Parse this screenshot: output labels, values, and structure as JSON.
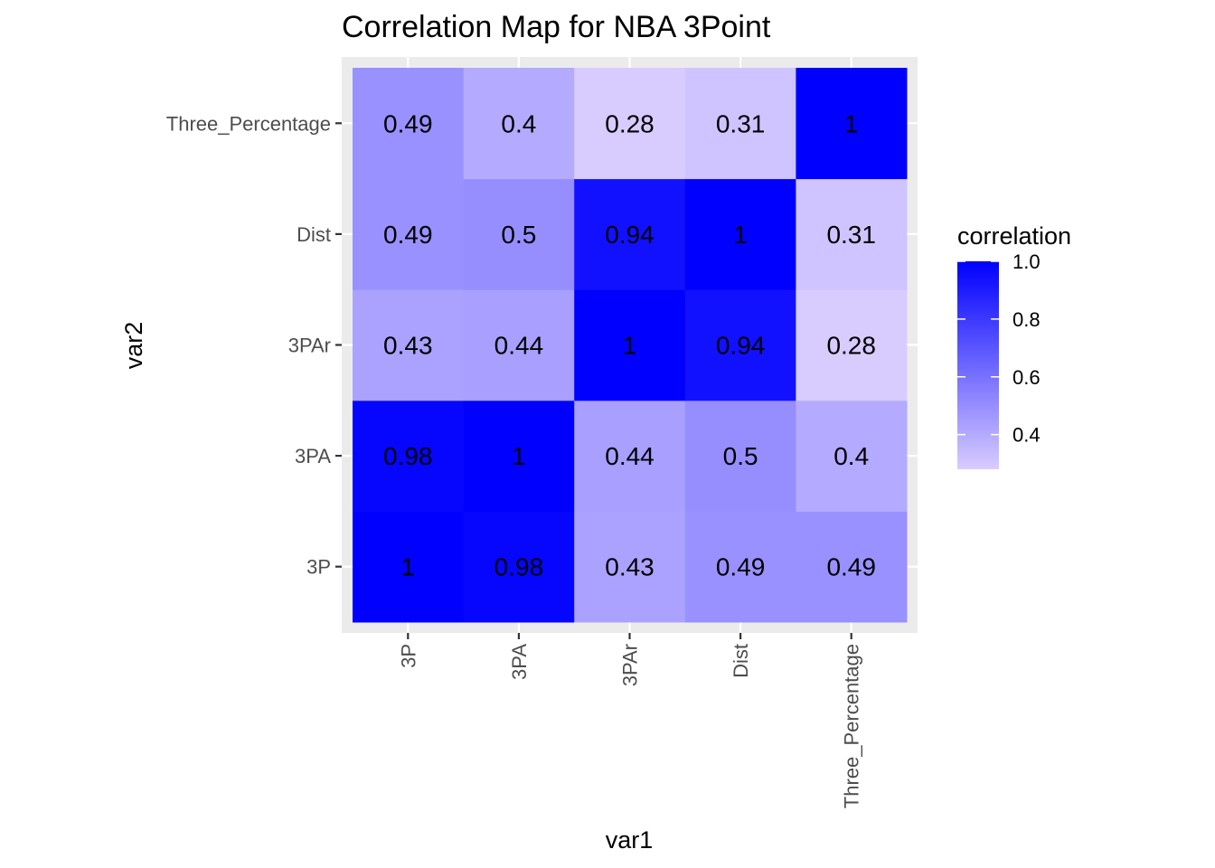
{
  "chart_data": {
    "type": "heatmap",
    "title": "Correlation Map for NBA 3Point",
    "xlabel": "var1",
    "ylabel": "var2",
    "x_categories": [
      "3P",
      "3PA",
      "3PAr",
      "Dist",
      "Three_Percentage"
    ],
    "y_categories": [
      "3P",
      "3PA",
      "3PAr",
      "Dist",
      "Three_Percentage"
    ],
    "values": [
      [
        1,
        0.98,
        0.43,
        0.49,
        0.49
      ],
      [
        0.98,
        1,
        0.44,
        0.5,
        0.4
      ],
      [
        0.43,
        0.44,
        1,
        0.94,
        0.28
      ],
      [
        0.49,
        0.5,
        0.94,
        1,
        0.31
      ],
      [
        0.49,
        0.4,
        0.28,
        0.31,
        1
      ]
    ],
    "value_labels": [
      [
        "1",
        "0.98",
        "0.43",
        "0.49",
        "0.49"
      ],
      [
        "0.98",
        "1",
        "0.44",
        "0.5",
        "0.4"
      ],
      [
        "0.43",
        "0.44",
        "1",
        "0.94",
        "0.28"
      ],
      [
        "0.49",
        "0.5",
        "0.94",
        "1",
        "0.31"
      ],
      [
        "0.49",
        "0.4",
        "0.28",
        "0.31",
        "1"
      ]
    ],
    "color_scale": {
      "low_color": "#d8ccff",
      "high_color": "#0000ff",
      "domain": [
        0.28,
        1
      ]
    },
    "legend": {
      "title": "correlation",
      "placement": "right",
      "ticks": [
        0.4,
        0.6,
        0.8,
        1.0
      ],
      "tick_labels": [
        "0.4",
        "0.6",
        "0.8",
        "1.0"
      ]
    },
    "panel_background": "#ebebeb",
    "grid": true
  }
}
